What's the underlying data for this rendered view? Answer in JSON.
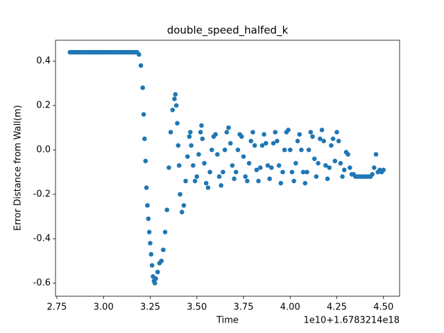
{
  "chart_data": {
    "type": "scatter",
    "title": "double_speed_halfed_k",
    "xlabel": "Time",
    "ylabel": "Error Distance from Wall(m)",
    "x_offset_text": "1e10+1.6783214e18",
    "color": "#1f77b4",
    "x": [
      2.82,
      2.83,
      2.84,
      2.85,
      2.86,
      2.87,
      2.88,
      2.89,
      2.9,
      2.91,
      2.92,
      2.93,
      2.94,
      2.95,
      2.96,
      2.97,
      2.98,
      2.99,
      3.0,
      3.01,
      3.02,
      3.03,
      3.04,
      3.05,
      3.06,
      3.07,
      3.08,
      3.09,
      3.1,
      3.11,
      3.12,
      3.13,
      3.14,
      3.15,
      3.16,
      3.17,
      3.18,
      3.19,
      3.2,
      3.21,
      3.215,
      3.22,
      3.225,
      3.23,
      3.235,
      3.24,
      3.245,
      3.25,
      3.255,
      3.26,
      3.265,
      3.27,
      3.275,
      3.28,
      3.29,
      3.3,
      3.31,
      3.32,
      3.33,
      3.34,
      3.35,
      3.36,
      3.37,
      3.38,
      3.385,
      3.39,
      3.395,
      3.4,
      3.405,
      3.41,
      3.42,
      3.43,
      3.44,
      3.45,
      3.46,
      3.465,
      3.47,
      3.48,
      3.49,
      3.5,
      3.51,
      3.52,
      3.525,
      3.53,
      3.54,
      3.55,
      3.56,
      3.57,
      3.58,
      3.59,
      3.6,
      3.61,
      3.62,
      3.63,
      3.64,
      3.65,
      3.66,
      3.67,
      3.68,
      3.69,
      3.7,
      3.71,
      3.72,
      3.73,
      3.74,
      3.75,
      3.76,
      3.77,
      3.78,
      3.79,
      3.8,
      3.81,
      3.82,
      3.83,
      3.84,
      3.85,
      3.86,
      3.87,
      3.88,
      3.89,
      3.9,
      3.91,
      3.92,
      3.93,
      3.94,
      3.95,
      3.96,
      3.97,
      3.98,
      3.99,
      4.0,
      4.01,
      4.02,
      4.03,
      4.04,
      4.05,
      4.06,
      4.07,
      4.08,
      4.09,
      4.1,
      4.11,
      4.12,
      4.13,
      4.14,
      4.15,
      4.16,
      4.17,
      4.18,
      4.19,
      4.2,
      4.21,
      4.22,
      4.23,
      4.24,
      4.25,
      4.26,
      4.27,
      4.28,
      4.29,
      4.3,
      4.31,
      4.32,
      4.33,
      4.34,
      4.35,
      4.36,
      4.37,
      4.38,
      4.39,
      4.4,
      4.41,
      4.42,
      4.43,
      4.44,
      4.45,
      4.46,
      4.47,
      4.48,
      4.49,
      4.5
    ],
    "values": [
      0.44,
      0.44,
      0.44,
      0.44,
      0.44,
      0.44,
      0.44,
      0.44,
      0.44,
      0.44,
      0.44,
      0.44,
      0.44,
      0.44,
      0.44,
      0.44,
      0.44,
      0.44,
      0.44,
      0.44,
      0.44,
      0.44,
      0.44,
      0.44,
      0.44,
      0.44,
      0.44,
      0.44,
      0.44,
      0.44,
      0.44,
      0.44,
      0.44,
      0.44,
      0.44,
      0.44,
      0.44,
      0.43,
      0.38,
      0.28,
      0.16,
      0.05,
      -0.05,
      -0.17,
      -0.25,
      -0.31,
      -0.37,
      -0.42,
      -0.47,
      -0.52,
      -0.57,
      -0.59,
      -0.6,
      -0.58,
      -0.55,
      -0.51,
      -0.5,
      -0.45,
      -0.37,
      -0.27,
      -0.08,
      0.08,
      0.18,
      0.23,
      0.25,
      0.2,
      0.12,
      0.02,
      -0.07,
      -0.2,
      -0.28,
      -0.25,
      -0.14,
      -0.03,
      0.06,
      0.08,
      0.02,
      -0.07,
      -0.14,
      -0.12,
      -0.02,
      0.08,
      0.11,
      0.05,
      -0.06,
      -0.15,
      -0.17,
      -0.1,
      0.0,
      0.06,
      0.07,
      -0.02,
      -0.12,
      -0.16,
      -0.1,
      0.0,
      0.08,
      0.1,
      0.03,
      -0.07,
      -0.13,
      -0.1,
      0.0,
      0.07,
      0.06,
      -0.03,
      -0.12,
      -0.14,
      -0.06,
      0.04,
      0.08,
      0.02,
      -0.09,
      -0.14,
      -0.08,
      0.02,
      0.07,
      0.03,
      -0.07,
      -0.13,
      -0.08,
      0.03,
      0.08,
      0.04,
      -0.07,
      -0.15,
      -0.1,
      0.0,
      0.08,
      0.09,
      0.0,
      -0.1,
      -0.14,
      -0.06,
      0.04,
      0.07,
      0.0,
      -0.1,
      -0.15,
      -0.1,
      0.0,
      0.08,
      0.06,
      -0.04,
      -0.12,
      -0.06,
      0.05,
      0.09,
      0.04,
      -0.07,
      -0.13,
      -0.08,
      0.02,
      0.05,
      -0.05,
      0.08,
      0.04,
      -0.06,
      -0.12,
      -0.09,
      -0.01,
      -0.02,
      -0.08,
      -0.11,
      -0.11,
      -0.12,
      -0.12,
      -0.12,
      -0.12,
      -0.12,
      -0.12,
      -0.12,
      -0.12,
      -0.12,
      -0.11,
      -0.08,
      -0.02,
      -0.1,
      -0.09,
      -0.1,
      -0.09
    ],
    "xlim": [
      2.7426,
      4.5864
    ],
    "ylim": [
      -0.659,
      0.494
    ],
    "xticks": [
      {
        "value": 2.75,
        "label": "2.75"
      },
      {
        "value": 3.0,
        "label": "3.00"
      },
      {
        "value": 3.25,
        "label": "3.25"
      },
      {
        "value": 3.5,
        "label": "3.50"
      },
      {
        "value": 3.75,
        "label": "3.75"
      },
      {
        "value": 4.0,
        "label": "4.00"
      },
      {
        "value": 4.25,
        "label": "4.25"
      },
      {
        "value": 4.5,
        "label": "4.50"
      }
    ],
    "yticks": [
      -0.6,
      -0.4,
      -0.2,
      {
        "value": 0,
        "label": "0.0"
      },
      0.2,
      0.4
    ]
  }
}
